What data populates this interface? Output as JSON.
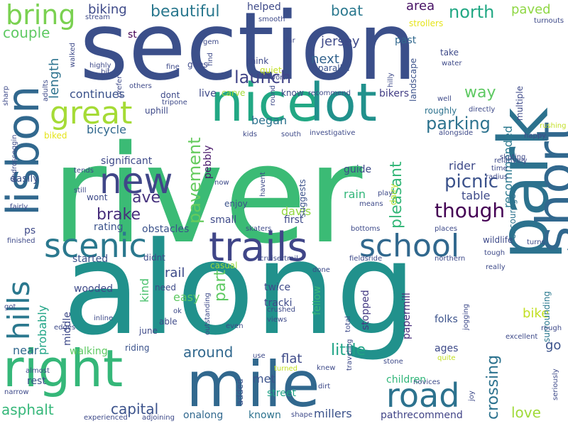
{
  "words": [
    {
      "text": "section",
      "color": "#3b4f8a"
    },
    {
      "text": "river",
      "color": "#3bbb75"
    },
    {
      "text": "along",
      "color": "#21918c"
    },
    {
      "text": "park",
      "color": "#2c728e"
    },
    {
      "text": "short",
      "color": "#31688e"
    },
    {
      "text": "lisbon",
      "color": "#31688e"
    },
    {
      "text": "nice",
      "color": "#22a884"
    },
    {
      "text": "lot",
      "color": "#21918c"
    },
    {
      "text": "mile",
      "color": "#31688e"
    },
    {
      "text": "right",
      "color": "#35b779"
    },
    {
      "text": "great",
      "color": "#a5db36"
    },
    {
      "text": "trails",
      "color": "#404688"
    },
    {
      "text": "school",
      "color": "#31688e"
    },
    {
      "text": "hills",
      "color": "#2a788e"
    },
    {
      "text": "new",
      "color": "#404688"
    },
    {
      "text": "scenic",
      "color": "#2a788e"
    },
    {
      "text": "road",
      "color": "#2c728e"
    },
    {
      "text": "bring",
      "color": "#7ad151"
    },
    {
      "text": "though",
      "color": "#440154"
    },
    {
      "text": "pavement",
      "color": "#65cb5e"
    },
    {
      "text": "launch",
      "color": "#414487"
    },
    {
      "text": "north",
      "color": "#22a884"
    },
    {
      "text": "beautiful",
      "color": "#2a788e"
    },
    {
      "text": "crossing",
      "color": "#2c728e"
    },
    {
      "text": "pleasant",
      "color": "#35b779"
    },
    {
      "text": "parking",
      "color": "#2c728e"
    },
    {
      "text": "picnic",
      "color": "#3b528b"
    },
    {
      "text": "brake",
      "color": "#472d7b"
    },
    {
      "text": "ave",
      "color": "#46327e"
    },
    {
      "text": "capital",
      "color": "#3b528b"
    },
    {
      "text": "around",
      "color": "#31688e"
    },
    {
      "text": "little",
      "color": "#20a486"
    },
    {
      "text": "part",
      "color": "#5ec962"
    },
    {
      "text": "asphalt",
      "color": "#35b779"
    },
    {
      "text": "couple",
      "color": "#5ec962"
    },
    {
      "text": "biking",
      "color": "#3e4a89"
    },
    {
      "text": "boat",
      "color": "#2a788e"
    },
    {
      "text": "area",
      "color": "#471164"
    },
    {
      "text": "paved",
      "color": "#8fd744"
    },
    {
      "text": "way",
      "color": "#5ec962"
    },
    {
      "text": "jersey",
      "color": "#3e4a89"
    },
    {
      "text": "next",
      "color": "#33638d"
    },
    {
      "text": "length",
      "color": "#2c728e"
    },
    {
      "text": "continues",
      "color": "#3b528b"
    },
    {
      "text": "bicycle",
      "color": "#31688e"
    },
    {
      "text": "love",
      "color": "#a0da39"
    },
    {
      "text": "rail",
      "color": "#3e4a89"
    },
    {
      "text": "bike",
      "color": "#c2df23"
    },
    {
      "text": "go",
      "color": "#3b528b"
    },
    {
      "text": "rain",
      "color": "#32b67a"
    },
    {
      "text": "rider",
      "color": "#3e4a89"
    },
    {
      "text": "table",
      "color": "#3e4a89"
    },
    {
      "text": "recommended",
      "color": "#2a788e"
    },
    {
      "text": "davis",
      "color": "#93d741"
    },
    {
      "text": "probably",
      "color": "#20a486"
    },
    {
      "text": "near",
      "color": "#31688e"
    },
    {
      "text": "rest",
      "color": "#3b528b"
    },
    {
      "text": "flat",
      "color": "#3e4a89"
    },
    {
      "text": "met",
      "color": "#3b528b"
    },
    {
      "text": "street",
      "color": "#20a486"
    },
    {
      "text": "known",
      "color": "#2c728e"
    },
    {
      "text": "millers",
      "color": "#3b528b"
    },
    {
      "text": "onalong",
      "color": "#31688e"
    },
    {
      "text": "pathrecommend",
      "color": "#414487"
    },
    {
      "text": "stopped",
      "color": "#443983"
    },
    {
      "text": "fellow",
      "color": "#35b779"
    },
    {
      "text": "began",
      "color": "#2c728e"
    },
    {
      "text": "pebbly",
      "color": "#48186a"
    },
    {
      "text": "easy",
      "color": "#5ec962"
    },
    {
      "text": "kind",
      "color": "#4ac16d"
    },
    {
      "text": "st",
      "color": "#440154"
    },
    {
      "text": "helped",
      "color": "#3e4a89"
    },
    {
      "text": "past",
      "color": "#31688e"
    },
    {
      "text": "parallel",
      "color": "#3b528b"
    },
    {
      "text": "bikers",
      "color": "#433e85"
    },
    {
      "text": "guide",
      "color": "#3e4a89"
    },
    {
      "text": "encourage",
      "color": "#2c728e"
    },
    {
      "text": "wildlife",
      "color": "#3e4a89"
    },
    {
      "text": "papermill",
      "color": "#472d7b"
    },
    {
      "text": "folks",
      "color": "#3b528b"
    },
    {
      "text": "ages",
      "color": "#3e4a89"
    },
    {
      "text": "children",
      "color": "#32b67a"
    },
    {
      "text": "walking",
      "color": "#5ec962"
    },
    {
      "text": "riding",
      "color": "#3b528b"
    },
    {
      "text": "twice",
      "color": "#3e4a89"
    },
    {
      "text": "tracki",
      "color": "#3e4a89"
    },
    {
      "text": "wooded",
      "color": "#3e4a89"
    },
    {
      "text": "started",
      "color": "#3b528b"
    },
    {
      "text": "obstacles",
      "color": "#3b528b"
    },
    {
      "text": "rating",
      "color": "#3b528b"
    },
    {
      "text": "enjoy",
      "color": "#3b528b"
    },
    {
      "text": "small",
      "color": "#3e4a89"
    },
    {
      "text": "first",
      "color": "#3e4a89"
    },
    {
      "text": "significant",
      "color": "#3e4a89"
    },
    {
      "text": "easily",
      "color": "#3b528b"
    },
    {
      "text": "ps",
      "color": "#3e4a89"
    },
    {
      "text": "wont",
      "color": "#3e4a89"
    },
    {
      "text": "didnt",
      "color": "#3e4a89"
    },
    {
      "text": "need",
      "color": "#3e4a89"
    },
    {
      "text": "able",
      "color": "#3e4a89"
    },
    {
      "text": "june",
      "color": "#3e4a89"
    },
    {
      "text": "middle",
      "color": "#3e4a89"
    },
    {
      "text": "casual",
      "color": "#9bd93c"
    },
    {
      "text": "uphill",
      "color": "#3e4a89"
    },
    {
      "text": "carve",
      "color": "#a0da39"
    },
    {
      "text": "live",
      "color": "#3e4a89"
    },
    {
      "text": "dont",
      "color": "#3e4a89"
    },
    {
      "text": "goes",
      "color": "#3e4a89"
    },
    {
      "text": "think",
      "color": "#3e4a89"
    },
    {
      "text": "quiet",
      "color": "#c2df23"
    },
    {
      "text": "biked",
      "color": "#e5e419"
    },
    {
      "text": "know",
      "color": "#3e4a89"
    },
    {
      "text": "take",
      "color": "#3e4a89"
    },
    {
      "text": "roughly",
      "color": "#2c728e"
    },
    {
      "text": "multiple",
      "color": "#3e4a89"
    },
    {
      "text": "landscape",
      "color": "#3b528b"
    },
    {
      "text": "dairy",
      "color": "#b5de2b"
    },
    {
      "text": "suggests",
      "color": "#3b528b"
    },
    {
      "text": "strollers",
      "color": "#e5e419"
    },
    {
      "text": "surrounding",
      "color": "#2a788e"
    },
    {
      "text": "added",
      "color": "#3b528b"
    },
    {
      "text": "joy",
      "color": "#3e4a89"
    },
    {
      "text": "seriously",
      "color": "#3e4a89"
    },
    {
      "text": "tripone",
      "color": "#3e4a89"
    },
    {
      "text": "alongside",
      "color": "#3e4a89"
    },
    {
      "text": "skating",
      "color": "#3e4a89"
    },
    {
      "text": "happy",
      "color": "#3e4a89"
    },
    {
      "text": "rushing",
      "color": "#c2df23"
    },
    {
      "text": "turns",
      "color": "#3e4a89"
    },
    {
      "text": "tough",
      "color": "#3e4a89"
    },
    {
      "text": "really",
      "color": "#3e4a89"
    },
    {
      "text": "excellent",
      "color": "#3e4a89"
    },
    {
      "text": "rough",
      "color": "#3e4a89"
    },
    {
      "text": "quite",
      "color": "#c2df23"
    },
    {
      "text": "stone",
      "color": "#3e4a89"
    },
    {
      "text": "novices",
      "color": "#3e4a89"
    },
    {
      "text": "knew",
      "color": "#3e4a89"
    },
    {
      "text": "dirt",
      "color": "#3e4a89"
    },
    {
      "text": "turned",
      "color": "#c2df23"
    },
    {
      "text": "shape",
      "color": "#3e4a89"
    },
    {
      "text": "adjoining",
      "color": "#3e4a89"
    },
    {
      "text": "experienced",
      "color": "#3e4a89"
    },
    {
      "text": "narrow",
      "color": "#3e4a89"
    },
    {
      "text": "almost",
      "color": "#3e4a89"
    },
    {
      "text": "got",
      "color": "#3e4a89"
    },
    {
      "text": "edges",
      "color": "#3e4a89"
    },
    {
      "text": "finished",
      "color": "#3e4a89"
    },
    {
      "text": "inline",
      "color": "#3e4a89"
    },
    {
      "text": "ok",
      "color": "#3e4a89"
    },
    {
      "text": "views",
      "color": "#3e4a89"
    },
    {
      "text": "crushed",
      "color": "#3e4a89"
    },
    {
      "text": "total",
      "color": "#3e4a89"
    },
    {
      "text": "traveling",
      "color": "#3e4a89"
    },
    {
      "text": "jogging",
      "color": "#3e4a89"
    },
    {
      "text": "outstanding",
      "color": "#3e4a89"
    },
    {
      "text": "even",
      "color": "#3e4a89"
    },
    {
      "text": "use",
      "color": "#3e4a89"
    },
    {
      "text": "cruisertrail",
      "color": "#3e4a89"
    },
    {
      "text": "done",
      "color": "#3e4a89"
    },
    {
      "text": "fieldsride",
      "color": "#3e4a89"
    },
    {
      "text": "northern",
      "color": "#3e4a89"
    },
    {
      "text": "bottoms",
      "color": "#3e4a89"
    },
    {
      "text": "places",
      "color": "#3e4a89"
    },
    {
      "text": "means",
      "color": "#3e4a89"
    },
    {
      "text": "play",
      "color": "#3e4a89"
    },
    {
      "text": "skaters",
      "color": "#3e4a89"
    },
    {
      "text": "havent",
      "color": "#3e4a89"
    },
    {
      "text": "now",
      "color": "#3e4a89"
    },
    {
      "text": "still",
      "color": "#3e4a89"
    },
    {
      "text": "fairly",
      "color": "#3e4a89"
    },
    {
      "text": "androscoggin",
      "color": "#3e4a89"
    },
    {
      "text": "tends",
      "color": "#3e4a89"
    },
    {
      "text": "radius",
      "color": "#3e4a89"
    },
    {
      "text": "time",
      "color": "#3e4a89"
    },
    {
      "text": "relatively",
      "color": "#3e4a89"
    },
    {
      "text": "kids",
      "color": "#3e4a89"
    },
    {
      "text": "south",
      "color": "#3e4a89"
    },
    {
      "text": "investigative",
      "color": "#3e4a89"
    },
    {
      "text": "directly",
      "color": "#3e4a89"
    },
    {
      "text": "well",
      "color": "#3e4a89"
    },
    {
      "text": "recommend",
      "color": "#3e4a89"
    },
    {
      "text": "round",
      "color": "#3e4a89"
    },
    {
      "text": "worth",
      "color": "#3e4a89"
    },
    {
      "text": "hilly",
      "color": "#3e4a89"
    },
    {
      "text": "water",
      "color": "#3e4a89"
    },
    {
      "text": "turnouts",
      "color": "#3e4a89"
    },
    {
      "text": "smooth",
      "color": "#3e4a89"
    },
    {
      "text": "far",
      "color": "#3e4a89"
    },
    {
      "text": "find",
      "color": "#3e4a89"
    },
    {
      "text": "gem",
      "color": "#3e4a89"
    },
    {
      "text": "fine",
      "color": "#3e4a89"
    },
    {
      "text": "prefer",
      "color": "#3e4a89"
    },
    {
      "text": "others",
      "color": "#3e4a89"
    },
    {
      "text": "highly",
      "color": "#3e4a89"
    },
    {
      "text": "bit",
      "color": "#3e4a89"
    },
    {
      "text": "walked",
      "color": "#3e4a89"
    },
    {
      "text": "stream",
      "color": "#3e4a89"
    },
    {
      "text": "adults",
      "color": "#3e4a89"
    },
    {
      "text": "sharp",
      "color": "#3e4a89"
    }
  ]
}
